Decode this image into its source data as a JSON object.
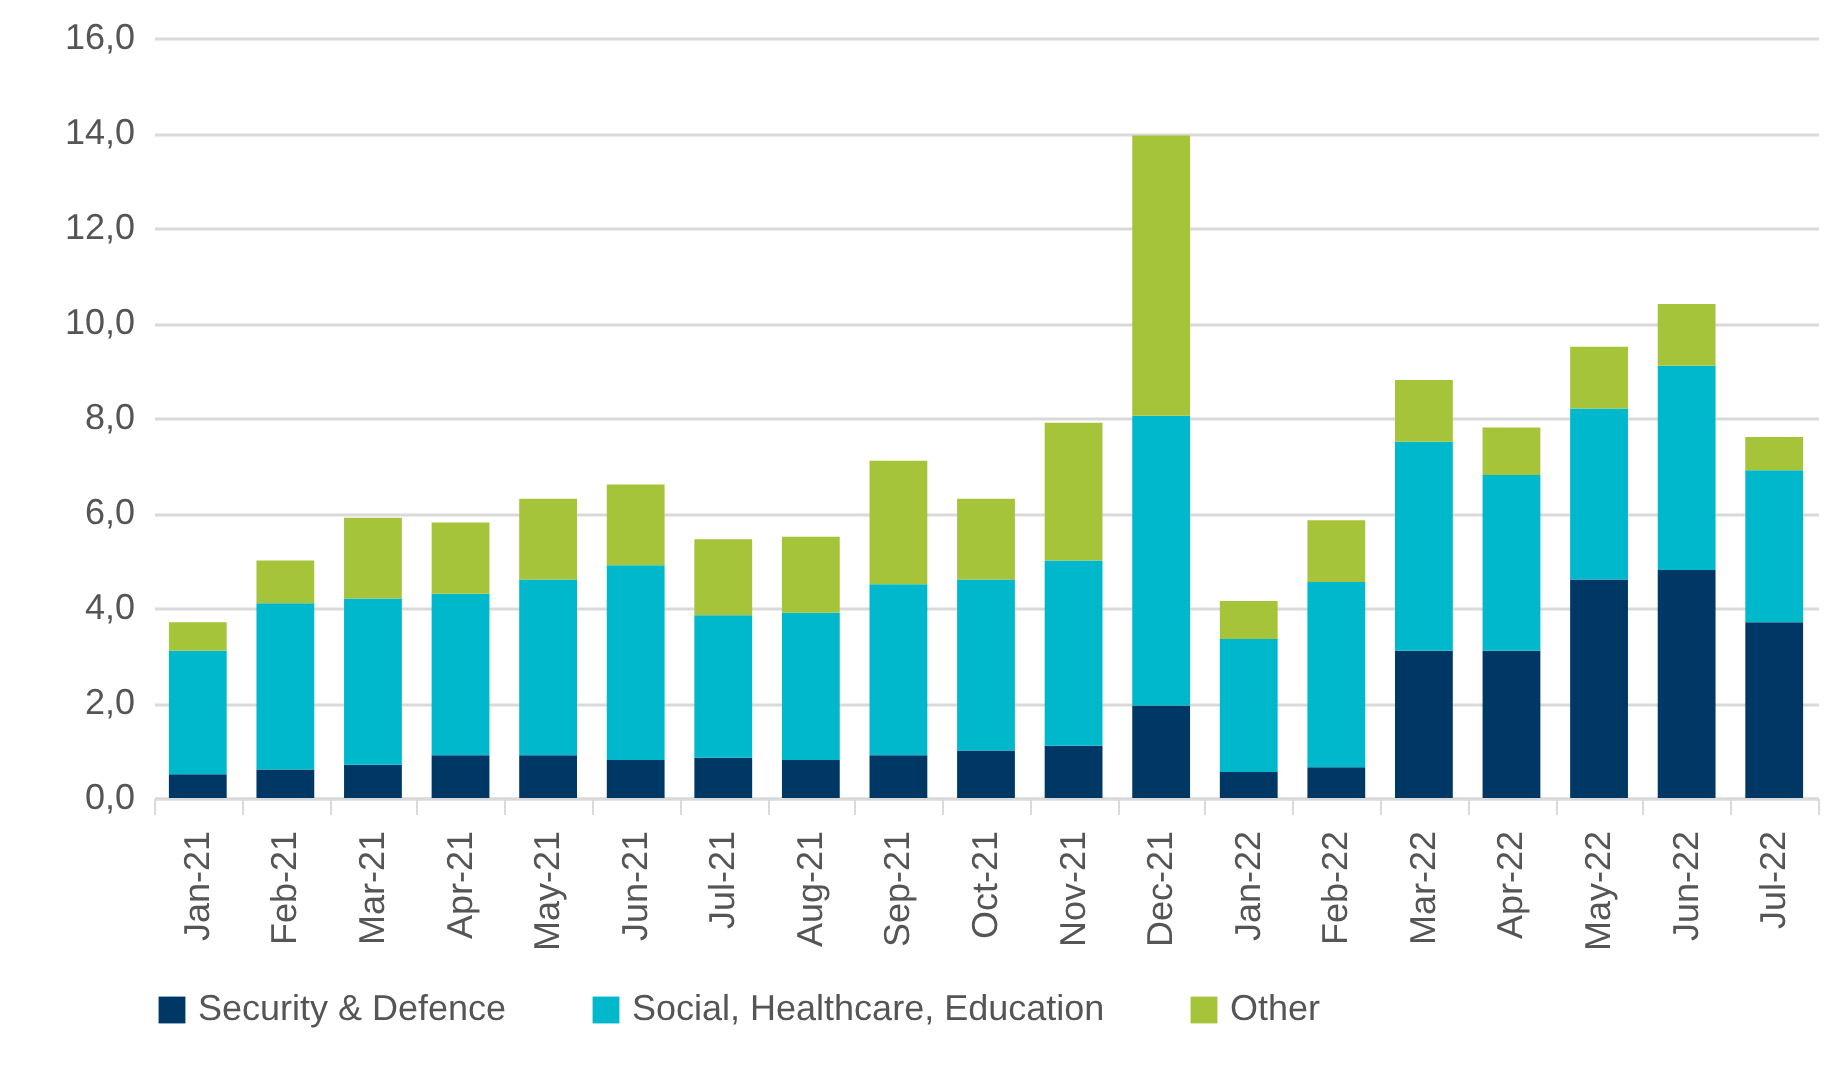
{
  "chart_data": {
    "type": "bar",
    "stacked": true,
    "categories": [
      "Jan-21",
      "Feb-21",
      "Mar-21",
      "Apr-21",
      "May-21",
      "Jun-21",
      "Jul-21",
      "Aug-21",
      "Sep-21",
      "Oct-21",
      "Nov-21",
      "Dec-21",
      "Jan-22",
      "Feb-22",
      "Mar-22",
      "Apr-22",
      "May-22",
      "Jun-22",
      "Jul-22"
    ],
    "series": [
      {
        "name": "Security & Defence",
        "color": "#003865",
        "values": [
          0.5,
          0.6,
          0.7,
          0.9,
          0.9,
          0.8,
          0.85,
          0.8,
          0.9,
          1.0,
          1.1,
          1.95,
          0.55,
          0.65,
          3.1,
          3.1,
          4.6,
          4.8,
          3.7
        ]
      },
      {
        "name": "Social, Healthcare, Education",
        "color": "#00b8cc",
        "values": [
          2.6,
          3.5,
          3.5,
          3.4,
          3.7,
          4.1,
          3.0,
          3.1,
          3.6,
          3.6,
          3.9,
          6.1,
          2.8,
          3.9,
          4.4,
          3.7,
          3.6,
          4.3,
          3.2
        ]
      },
      {
        "name": "Other",
        "color": "#a6c43a",
        "values": [
          0.6,
          0.9,
          1.7,
          1.5,
          1.7,
          1.7,
          1.6,
          1.6,
          2.6,
          1.7,
          2.9,
          5.9,
          0.8,
          1.3,
          1.3,
          1.0,
          1.3,
          1.3,
          0.7
        ]
      }
    ],
    "ylim": [
      0,
      16
    ],
    "yticks": [
      {
        "value": 0,
        "label": "0,0"
      },
      {
        "value": 2,
        "label": "2,0"
      },
      {
        "value": 4,
        "label": "4,0"
      },
      {
        "value": 6,
        "label": "6,0"
      },
      {
        "value": 8,
        "label": "8,0"
      },
      {
        "value": 10,
        "label": "10,0"
      },
      {
        "value": 12,
        "label": "12,0"
      },
      {
        "value": 14,
        "label": "14,0"
      },
      {
        "value": 16,
        "label": "16,0"
      }
    ],
    "grid": "y",
    "legend": "bottom"
  }
}
